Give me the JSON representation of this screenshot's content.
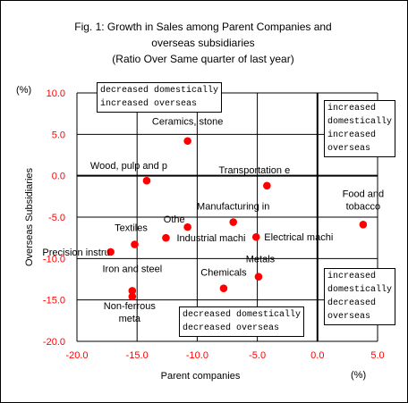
{
  "chart_data": {
    "type": "scatter",
    "title_lines": [
      "Fig. 1: Growth in Sales among Parent Companies and",
      "overseas subsidiaries",
      "(Ratio Over Same quarter of last year)"
    ],
    "xlabel": "Parent companies",
    "ylabel": "Overseas Subsidiaries",
    "x_unit": "(%)",
    "y_unit": "(%)",
    "xlim": [
      -20,
      5
    ],
    "ylim": [
      -20,
      10
    ],
    "xticks": [
      "-20.0",
      "-15.0",
      "-10.0",
      "-5.0",
      "0.0",
      "5.0"
    ],
    "yticks": [
      "10.0",
      "5.0",
      "0.0",
      "-5.0",
      "-10.0",
      "-15.0",
      "-20.0"
    ],
    "points": [
      {
        "label": "Ceramics, stone",
        "x": -10.8,
        "y": 4.2
      },
      {
        "label": "Wood, pulp and p",
        "x": -14.2,
        "y": -0.6
      },
      {
        "label": "Transportation e",
        "x": -4.2,
        "y": -1.2
      },
      {
        "label": "Food and tobacco",
        "x": 3.8,
        "y": -5.9
      },
      {
        "label": "Manufacturing in",
        "x": -7.0,
        "y": -5.6
      },
      {
        "label": "Othe",
        "x": -10.8,
        "y": -6.2
      },
      {
        "label": "Textiles",
        "x": -15.2,
        "y": -8.3
      },
      {
        "label": "Industrial machi",
        "x": -12.6,
        "y": -7.5
      },
      {
        "label": "Electrical machi",
        "x": -5.1,
        "y": -7.4
      },
      {
        "label": "Precision instru",
        "x": -17.2,
        "y": -9.2
      },
      {
        "label": "Metals",
        "x": -4.9,
        "y": -12.2
      },
      {
        "label": "Chemicals",
        "x": -7.8,
        "y": -13.6
      },
      {
        "label": "Iron and steel",
        "x": -15.4,
        "y": -13.9
      },
      {
        "label": "Non-ferrous meta",
        "x": -15.4,
        "y": -14.6
      }
    ],
    "quadrant_notes": {
      "top_left": "decreased domestically\nincreased overseas",
      "top_right": "increased\ndomestically\nincreased\noverseas",
      "bottom_right": "increased\ndomestically\ndecreased\noverseas",
      "bottom_center": "decreased domestically\ndecreased overseas"
    },
    "grid": true,
    "colors": {
      "points": "#ff0000",
      "ticks": "#ff0000"
    }
  }
}
